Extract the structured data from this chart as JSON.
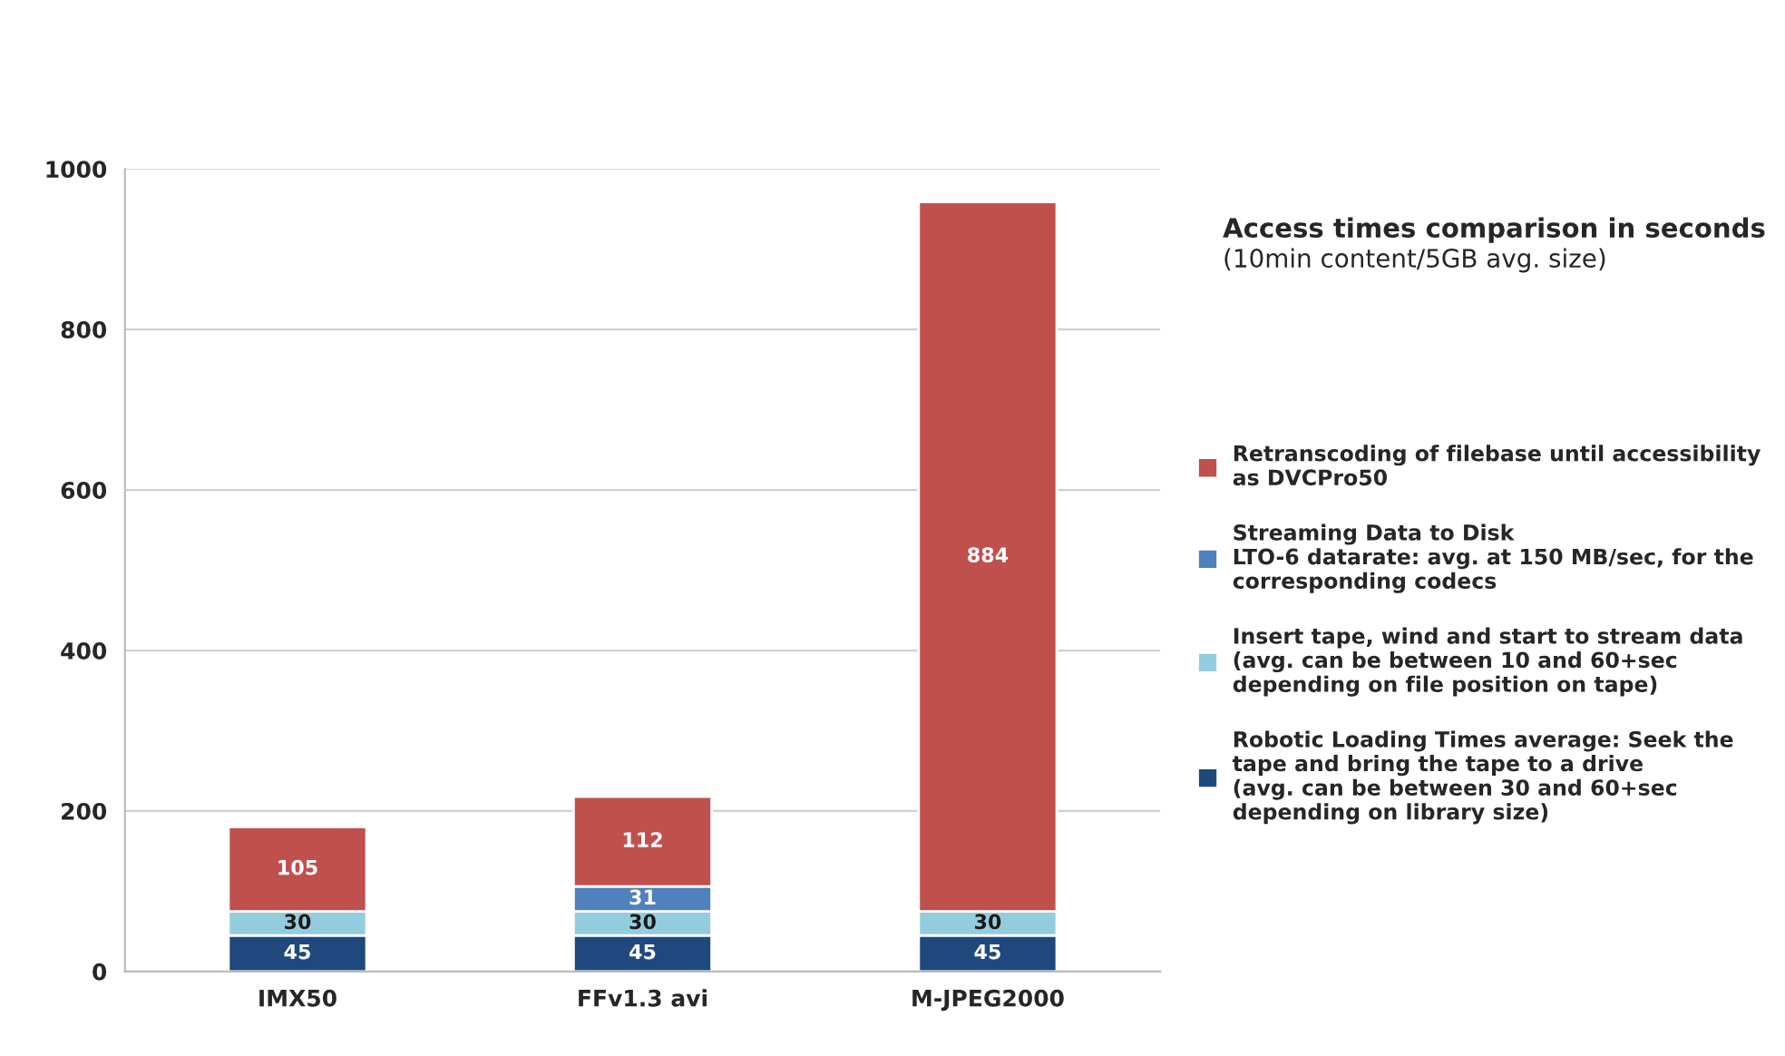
{
  "chart_data": {
    "type": "bar",
    "stacked": true,
    "title": "Access times comparison in seconds",
    "subtitle": "(10min content/5GB avg. size)",
    "categories": [
      "IMX50",
      "FFv1.3 avi",
      "M-JPEG2000"
    ],
    "series": [
      {
        "name": "Robotic Loading Times average: Seek the\ntape and bring the tape to a drive\n(avg. can be between 30 and 60+sec\ndepending on library size)",
        "color": "#1f497d",
        "values": [
          45,
          45,
          45
        ]
      },
      {
        "name": "Insert tape, wind and start to stream data\n(avg. can be between 10 and 60+sec\ndepending on file position on tape)",
        "color": "#93cddd",
        "values": [
          30,
          30,
          30
        ]
      },
      {
        "name": "Streaming Data to Disk\nLTO-6 datarate: avg. at 150 MB/sec, for the\ncorresponding codecs",
        "color": "#4f81bd",
        "values": [
          null,
          31,
          null
        ]
      },
      {
        "name": "Retranscoding of filebase until accessibility\nas DVCPro50",
        "color": "#c0504d",
        "values": [
          105,
          112,
          884
        ]
      }
    ],
    "ylim": [
      0,
      1000
    ],
    "yticks": [
      0,
      200,
      400,
      600,
      800,
      1000
    ],
    "grid": "y",
    "legend": "right",
    "data_labels": true
  }
}
